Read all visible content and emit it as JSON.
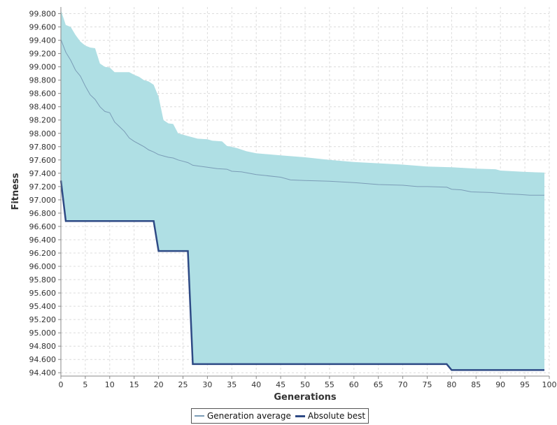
{
  "chart_data": {
    "type": "line",
    "xlabel": "Generations",
    "ylabel": "Fitness",
    "xlim": [
      0,
      100
    ],
    "ylim": [
      94.35,
      99.9
    ],
    "x_ticks": [
      0,
      5,
      10,
      15,
      20,
      25,
      30,
      35,
      40,
      45,
      50,
      55,
      60,
      65,
      70,
      75,
      80,
      85,
      90,
      95,
      100
    ],
    "y_ticks": [
      "94.400",
      "94.600",
      "94.800",
      "95.000",
      "95.200",
      "95.400",
      "95.600",
      "95.800",
      "96.000",
      "96.200",
      "96.400",
      "96.600",
      "96.800",
      "97.000",
      "97.200",
      "97.400",
      "97.600",
      "97.800",
      "98.000",
      "98.200",
      "98.400",
      "98.600",
      "98.800",
      "99.000",
      "99.200",
      "99.400",
      "99.600",
      "99.800"
    ],
    "grid": true,
    "legend_position": "bottom",
    "colors": {
      "band": "#afdfe4",
      "generation_average": "#7a9cb6",
      "absolute_best": "#2e4a85"
    },
    "band": {
      "upper": [
        [
          0,
          99.85
        ],
        [
          1,
          99.63
        ],
        [
          2,
          99.6
        ],
        [
          3,
          99.48
        ],
        [
          4,
          99.38
        ],
        [
          5,
          99.32
        ],
        [
          6,
          99.29
        ],
        [
          7,
          99.28
        ],
        [
          8,
          99.05
        ],
        [
          9,
          99.0
        ],
        [
          10,
          98.99
        ],
        [
          11,
          98.92
        ],
        [
          13,
          98.92
        ],
        [
          14,
          98.92
        ],
        [
          15,
          98.88
        ],
        [
          16,
          98.85
        ],
        [
          17,
          98.8
        ],
        [
          18,
          98.78
        ],
        [
          19,
          98.73
        ],
        [
          20,
          98.55
        ],
        [
          21,
          98.2
        ],
        [
          22,
          98.15
        ],
        [
          23,
          98.14
        ],
        [
          24,
          98.0
        ],
        [
          26,
          97.96
        ],
        [
          28,
          97.92
        ],
        [
          30,
          97.91
        ],
        [
          31,
          97.89
        ],
        [
          33,
          97.88
        ],
        [
          34,
          97.81
        ],
        [
          36,
          97.78
        ],
        [
          38,
          97.73
        ],
        [
          40,
          97.7
        ],
        [
          45,
          97.67
        ],
        [
          50,
          97.64
        ],
        [
          55,
          97.6
        ],
        [
          60,
          97.57
        ],
        [
          65,
          97.55
        ],
        [
          70,
          97.53
        ],
        [
          75,
          97.5
        ],
        [
          80,
          97.49
        ],
        [
          85,
          97.47
        ],
        [
          89,
          97.46
        ],
        [
          90,
          97.44
        ],
        [
          95,
          97.42
        ],
        [
          99,
          97.41
        ]
      ],
      "lower": [
        [
          0,
          97.29
        ],
        [
          1,
          96.68
        ],
        [
          19,
          96.68
        ],
        [
          20,
          96.23
        ],
        [
          26,
          96.23
        ],
        [
          27,
          94.53
        ],
        [
          79,
          94.53
        ],
        [
          80,
          94.44
        ],
        [
          99,
          94.44
        ]
      ]
    },
    "series": [
      {
        "name": "Generation average",
        "points": [
          [
            0,
            99.41
          ],
          [
            1,
            99.22
          ],
          [
            2,
            99.1
          ],
          [
            3,
            98.95
          ],
          [
            4,
            98.86
          ],
          [
            5,
            98.71
          ],
          [
            6,
            98.58
          ],
          [
            7,
            98.51
          ],
          [
            8,
            98.4
          ],
          [
            9,
            98.33
          ],
          [
            10,
            98.31
          ],
          [
            11,
            98.17
          ],
          [
            12,
            98.1
          ],
          [
            13,
            98.03
          ],
          [
            14,
            97.93
          ],
          [
            15,
            97.88
          ],
          [
            16,
            97.84
          ],
          [
            17,
            97.8
          ],
          [
            18,
            97.75
          ],
          [
            19,
            97.72
          ],
          [
            20,
            97.68
          ],
          [
            21,
            97.66
          ],
          [
            22,
            97.64
          ],
          [
            23,
            97.63
          ],
          [
            24,
            97.6
          ],
          [
            25,
            97.58
          ],
          [
            26,
            97.56
          ],
          [
            27,
            97.52
          ],
          [
            28,
            97.51
          ],
          [
            30,
            97.49
          ],
          [
            32,
            97.47
          ],
          [
            34,
            97.46
          ],
          [
            35,
            97.43
          ],
          [
            37,
            97.42
          ],
          [
            40,
            97.38
          ],
          [
            45,
            97.34
          ],
          [
            47,
            97.3
          ],
          [
            50,
            97.29
          ],
          [
            55,
            97.28
          ],
          [
            60,
            97.26
          ],
          [
            65,
            97.23
          ],
          [
            70,
            97.22
          ],
          [
            73,
            97.2
          ],
          [
            75,
            97.2
          ],
          [
            79,
            97.19
          ],
          [
            80,
            97.16
          ],
          [
            82,
            97.15
          ],
          [
            84,
            97.12
          ],
          [
            88,
            97.11
          ],
          [
            91,
            97.09
          ],
          [
            94,
            97.08
          ],
          [
            96,
            97.07
          ],
          [
            99,
            97.07
          ]
        ]
      },
      {
        "name": "Absolute best",
        "points": [
          [
            0,
            97.29
          ],
          [
            1,
            96.68
          ],
          [
            19,
            96.68
          ],
          [
            20,
            96.23
          ],
          [
            26,
            96.23
          ],
          [
            27,
            94.53
          ],
          [
            79,
            94.53
          ],
          [
            80,
            94.44
          ],
          [
            99,
            94.44
          ]
        ]
      }
    ]
  },
  "legend": {
    "items": [
      "Generation average",
      "Absolute best"
    ]
  }
}
